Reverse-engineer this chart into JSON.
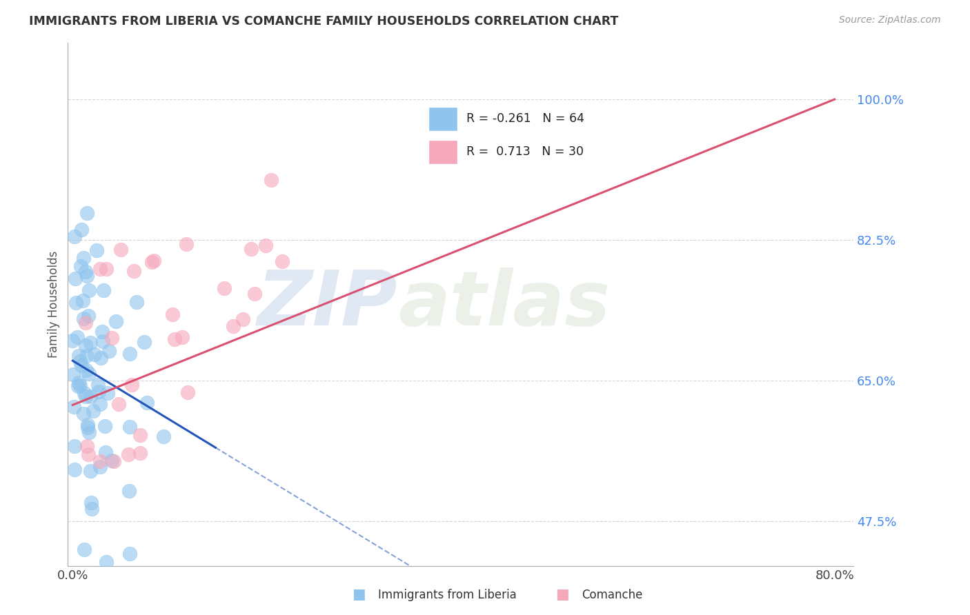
{
  "title": "IMMIGRANTS FROM LIBERIA VS COMANCHE FAMILY HOUSEHOLDS CORRELATION CHART",
  "source": "Source: ZipAtlas.com",
  "ylabel": "Family Households",
  "x_label_liberia": "Immigrants from Liberia",
  "x_label_comanche": "Comanche",
  "xlim_min": -0.5,
  "xlim_max": 82,
  "ylim_min": 42,
  "ylim_max": 107,
  "xtick_positions": [
    0,
    80
  ],
  "xtick_labels": [
    "0.0%",
    "80.0%"
  ],
  "ytick_positions": [
    47.5,
    65.0,
    82.5,
    100.0
  ],
  "ytick_labels": [
    "47.5%",
    "65.0%",
    "82.5%",
    "100.0%"
  ],
  "liberia_color": "#8EC4ED",
  "comanche_color": "#F5A8BC",
  "liberia_line_color": "#2255BB",
  "comanche_line_color": "#D95070",
  "R_liberia": -0.261,
  "N_liberia": 64,
  "R_comanche": 0.713,
  "N_comanche": 30,
  "watermark_zip": "ZIP",
  "watermark_atlas": "atlas",
  "background_color": "#FFFFFF",
  "grid_color": "#CCCCCC",
  "title_color": "#333333",
  "axis_label_color": "#555555",
  "ytick_color": "#4488EE",
  "legend_box_color": "#F0F4FF",
  "legend_border_color": "#CCCCCC"
}
